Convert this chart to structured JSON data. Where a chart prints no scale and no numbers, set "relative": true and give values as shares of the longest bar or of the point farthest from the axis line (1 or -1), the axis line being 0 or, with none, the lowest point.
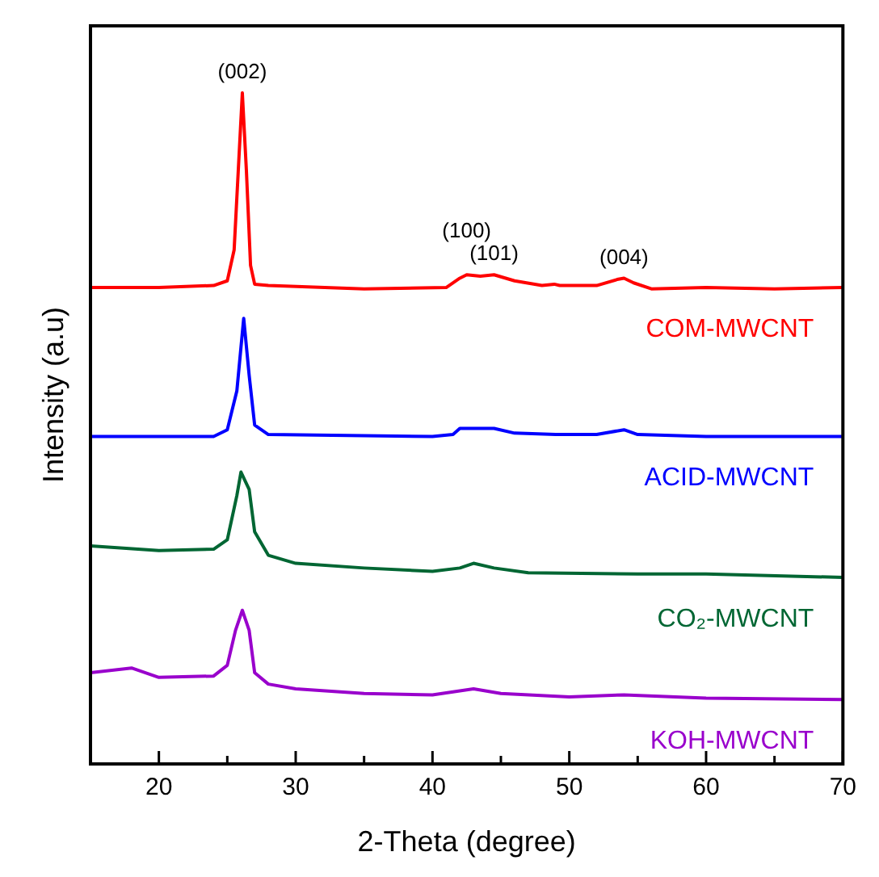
{
  "chart_data": {
    "type": "line",
    "xlabel": "2-Theta (degree)",
    "ylabel": "Intensity (a.u)",
    "relative": true,
    "xlim": [
      15,
      70
    ],
    "xticks": [
      20,
      {
        "value": 25,
        "label": null
      },
      30,
      {
        "value": 35,
        "label": null
      },
      40,
      {
        "value": 45,
        "label": null
      },
      50,
      {
        "value": 55,
        "label": null
      },
      60,
      {
        "value": 65,
        "label": null
      },
      70
    ],
    "grid": false,
    "legend": false,
    "marker": "none",
    "line_style": "solid",
    "series": [
      {
        "name": "COM-MWCNT",
        "color": "#ff0000",
        "x": [
          15,
          20,
          24,
          25,
          25.5,
          25.8,
          26.1,
          26.4,
          26.7,
          27,
          28,
          35,
          41,
          42,
          42.5,
          43.5,
          44.5,
          46,
          48,
          48.9,
          49.3,
          52,
          53.5,
          54,
          54.7,
          56,
          60,
          65,
          70
        ],
        "values": [
          0.71,
          0.71,
          0.713,
          0.72,
          0.766,
          0.883,
          1,
          0.883,
          0.743,
          0.715,
          0.713,
          0.708,
          0.71,
          0.724,
          0.729,
          0.727,
          0.729,
          0.72,
          0.713,
          0.715,
          0.713,
          0.713,
          0.722,
          0.724,
          0.717,
          0.708,
          0.71,
          0.708,
          0.71
        ]
      },
      {
        "name": "ACID-MWCNT",
        "color": "#0000ff",
        "x": [
          15,
          24,
          25,
          25.7,
          26.2,
          26.6,
          27,
          28,
          40,
          41.5,
          42,
          43,
          44.5,
          46,
          49,
          52,
          54,
          55,
          60,
          70
        ],
        "values": [
          0.488,
          0.488,
          0.498,
          0.556,
          0.664,
          0.579,
          0.505,
          0.491,
          0.488,
          0.491,
          0.5,
          0.5,
          0.5,
          0.493,
          0.491,
          0.491,
          0.498,
          0.491,
          0.488,
          0.488
        ]
      },
      {
        "name": "CO₂-MWCNT",
        "color": "#006633",
        "x": [
          15,
          20,
          24,
          25,
          25.7,
          26,
          26.6,
          27,
          28,
          30,
          35,
          40,
          42,
          43,
          44.5,
          47,
          55,
          60,
          70
        ],
        "values": [
          0.325,
          0.318,
          0.32,
          0.334,
          0.4,
          0.435,
          0.409,
          0.346,
          0.311,
          0.299,
          0.292,
          0.287,
          0.292,
          0.299,
          0.292,
          0.285,
          0.283,
          0.283,
          0.278
        ]
      },
      {
        "name": "KOH-MWCNT",
        "color": "#9900cc",
        "x": [
          15,
          18,
          20,
          24,
          25,
          25.6,
          26.1,
          26.6,
          27,
          28,
          30,
          35,
          40,
          43,
          45,
          50,
          54,
          60,
          70
        ],
        "values": [
          0.136,
          0.143,
          0.129,
          0.131,
          0.147,
          0.199,
          0.229,
          0.199,
          0.136,
          0.119,
          0.112,
          0.105,
          0.103,
          0.112,
          0.105,
          0.1,
          0.103,
          0.098,
          0.096
        ]
      }
    ],
    "annotations": [
      {
        "text": "(002)",
        "x": 26.1,
        "y": 1
      },
      {
        "text": "(100)",
        "x": 42.5,
        "y": 0.729
      },
      {
        "text": "(101)",
        "x": 44.5,
        "y": 0.729
      },
      {
        "text": "(004)",
        "x": 54,
        "y": 0.724
      }
    ]
  }
}
